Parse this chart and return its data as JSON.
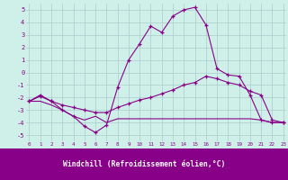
{
  "xlabel": "Windchill (Refroidissement éolien,°C)",
  "bg_color": "#cff0e8",
  "grid_color": "#aacccc",
  "line_color": "#880088",
  "footer_color": "#880088",
  "x_ticks": [
    0,
    1,
    2,
    3,
    4,
    5,
    6,
    7,
    8,
    9,
    10,
    11,
    12,
    13,
    14,
    15,
    16,
    17,
    18,
    19,
    20,
    21,
    22,
    23
  ],
  "y_ticks": [
    -5,
    -4,
    -3,
    -2,
    -1,
    0,
    1,
    2,
    3,
    4,
    5
  ],
  "ylim": [
    -5.5,
    5.5
  ],
  "xlim": [
    -0.3,
    23.3
  ],
  "series1": {
    "x": [
      0,
      1,
      2,
      3,
      4,
      5,
      6,
      7,
      8,
      9,
      10,
      11,
      12,
      13,
      14,
      15,
      16,
      17,
      18,
      19,
      20,
      21,
      22,
      23
    ],
    "y": [
      -2.3,
      -1.8,
      -2.3,
      -3.0,
      -3.5,
      -4.3,
      -4.8,
      -4.2,
      -1.2,
      1.0,
      2.3,
      3.7,
      3.2,
      4.5,
      5.0,
      5.2,
      3.8,
      0.3,
      -0.2,
      -0.3,
      -1.8,
      -3.8,
      -4.0,
      -4.0
    ],
    "markers": true
  },
  "series2": {
    "x": [
      0,
      1,
      2,
      3,
      4,
      5,
      6,
      7,
      8,
      9,
      10,
      11,
      12,
      13,
      14,
      15,
      16,
      17,
      18,
      19,
      20,
      21,
      22,
      23
    ],
    "y": [
      -2.3,
      -1.9,
      -2.3,
      -2.6,
      -2.8,
      -3.0,
      -3.2,
      -3.2,
      -2.8,
      -2.5,
      -2.2,
      -2.0,
      -1.7,
      -1.4,
      -1.0,
      -0.8,
      -0.3,
      -0.5,
      -0.8,
      -1.0,
      -1.5,
      -1.8,
      -3.8,
      -4.0
    ],
    "markers": true
  },
  "series3": {
    "x": [
      0,
      1,
      2,
      3,
      4,
      5,
      6,
      7,
      8,
      9,
      10,
      11,
      12,
      13,
      14,
      15,
      16,
      17,
      18,
      19,
      20,
      21,
      22,
      23
    ],
    "y": [
      -2.3,
      -2.3,
      -2.6,
      -3.0,
      -3.5,
      -3.8,
      -3.5,
      -4.0,
      -3.7,
      -3.7,
      -3.7,
      -3.7,
      -3.7,
      -3.7,
      -3.7,
      -3.7,
      -3.7,
      -3.7,
      -3.7,
      -3.7,
      -3.7,
      -3.8,
      -4.0,
      -4.0
    ],
    "markers": false
  }
}
